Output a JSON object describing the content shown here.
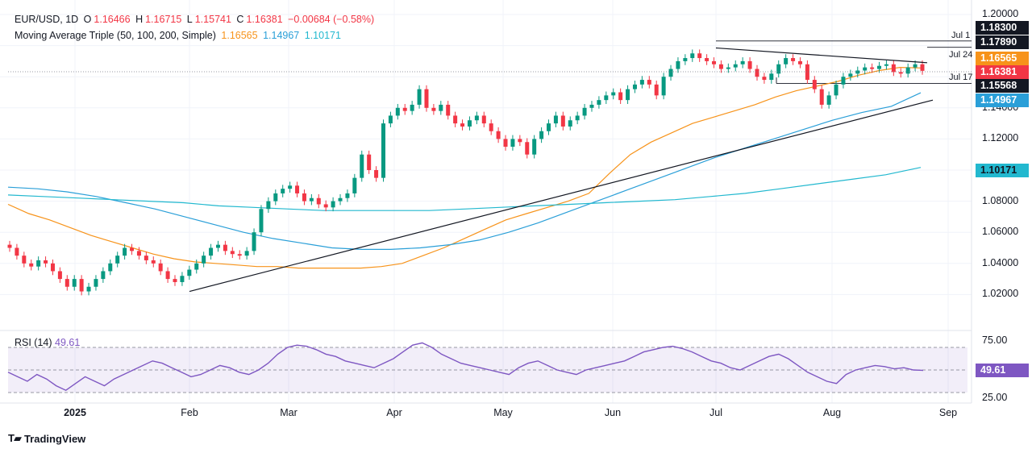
{
  "header": {
    "symbol": "EUR/USD, 1D",
    "o_label": "O",
    "o_value": "1.16466",
    "h_label": "H",
    "h_value": "1.16715",
    "l_label": "L",
    "l_value": "1.15741",
    "c_label": "C",
    "c_value": "1.16381",
    "change": "−0.00684 (−0.58%)"
  },
  "ma_legend": {
    "name": "Moving Average Triple (50, 100, 200, Simple)",
    "v50": "1.16565",
    "v100": "1.14967",
    "v200": "1.10171"
  },
  "rsi_legend": {
    "name": "RSI (14)",
    "value": "49.61"
  },
  "price_tags": [
    {
      "text": "1.18300",
      "bg": "#131722",
      "fg": "#ffffff"
    },
    {
      "text": "1.17890",
      "bg": "#131722",
      "fg": "#ffffff"
    },
    {
      "text": "1.16565",
      "bg": "#f7931a",
      "fg": "#ffffff"
    },
    {
      "text": "1.16381",
      "bg": "#f23645",
      "fg": "#ffffff"
    },
    {
      "text": "1.15568",
      "bg": "#131722",
      "fg": "#ffffff"
    },
    {
      "text": "1.14967",
      "bg": "#2a9fd8",
      "fg": "#ffffff"
    },
    {
      "text": "1.10171",
      "bg": "#22b8cf",
      "fg": "#131722"
    },
    {
      "text": "49.61",
      "bg": "#7e57c2",
      "fg": "#ffffff"
    }
  ],
  "hline_labels": [
    "Jul 1",
    "Jul 24",
    "Jul 17"
  ],
  "brand": "TradingView",
  "colors": {
    "up": "#089981",
    "down": "#f23645",
    "ma50": "#f7931a",
    "ma100": "#2a9fd8",
    "ma200": "#22b8cf",
    "rsi": "#7e57c2"
  },
  "chart_data": {
    "type": "candlestick",
    "title": "EUR/USD, 1D",
    "price_axis": {
      "ticks": [
        "1.20000",
        "1.18000",
        "1.16000",
        "1.14000",
        "1.12000",
        "1.10000",
        "1.08000",
        "1.06000",
        "1.04000",
        "1.02000"
      ],
      "ylim": [
        1.005,
        1.2
      ]
    },
    "x_axis": {
      "ticks": [
        "2025",
        "Feb",
        "Mar",
        "Apr",
        "May",
        "Jun",
        "Jul",
        "Aug",
        "Sep"
      ]
    },
    "rsi_axis": {
      "ticks": [
        "75.00",
        "50.00",
        "25.00"
      ],
      "levels": [
        70,
        50,
        30
      ]
    },
    "price_path": [
      1.05,
      1.045,
      1.04,
      1.038,
      1.042,
      1.04,
      1.035,
      1.03,
      1.025,
      1.03,
      1.022,
      1.025,
      1.03,
      1.035,
      1.04,
      1.045,
      1.05,
      1.048,
      1.045,
      1.042,
      1.04,
      1.035,
      1.03,
      1.028,
      1.032,
      1.036,
      1.04,
      1.045,
      1.05,
      1.052,
      1.048,
      1.046,
      1.045,
      1.048,
      1.06,
      1.075,
      1.08,
      1.085,
      1.088,
      1.09,
      1.085,
      1.08,
      1.082,
      1.078,
      1.076,
      1.08,
      1.082,
      1.085,
      1.095,
      1.11,
      1.1,
      1.095,
      1.13,
      1.135,
      1.14,
      1.138,
      1.142,
      1.152,
      1.14,
      1.138,
      1.142,
      1.135,
      1.13,
      1.128,
      1.132,
      1.135,
      1.13,
      1.125,
      1.12,
      1.115,
      1.12,
      1.118,
      1.11,
      1.12,
      1.125,
      1.13,
      1.135,
      1.128,
      1.132,
      1.135,
      1.14,
      1.142,
      1.145,
      1.148,
      1.15,
      1.145,
      1.152,
      1.155,
      1.158,
      1.155,
      1.148,
      1.16,
      1.165,
      1.17,
      1.172,
      1.175,
      1.172,
      1.17,
      1.168,
      1.165,
      1.166,
      1.168,
      1.17,
      1.165,
      1.16,
      1.158,
      1.162,
      1.168,
      1.172,
      1.17,
      1.168,
      1.158,
      1.152,
      1.142,
      1.148,
      1.155,
      1.16,
      1.162,
      1.164,
      1.166,
      1.165,
      1.167,
      1.168,
      1.163,
      1.162,
      1.166,
      1.168,
      1.1638
    ],
    "series": [
      {
        "name": "50",
        "values": [
          1.078,
          1.072,
          1.068,
          1.063,
          1.058,
          1.054,
          1.05,
          1.046,
          1.043,
          1.041,
          1.04,
          1.039,
          1.038,
          1.038,
          1.037,
          1.037,
          1.037,
          1.037,
          1.038,
          1.04,
          1.045,
          1.05,
          1.056,
          1.062,
          1.068,
          1.072,
          1.076,
          1.08,
          1.085,
          1.098,
          1.11,
          1.118,
          1.124,
          1.13,
          1.134,
          1.138,
          1.142,
          1.147,
          1.151,
          1.154,
          1.157,
          1.161,
          1.164,
          1.166,
          1.16565
        ]
      },
      {
        "name": "100",
        "values": [
          1.089,
          1.088,
          1.086,
          1.083,
          1.079,
          1.075,
          1.07,
          1.065,
          1.06,
          1.056,
          1.053,
          1.05,
          1.049,
          1.049,
          1.05,
          1.052,
          1.055,
          1.06,
          1.066,
          1.073,
          1.08,
          1.087,
          1.094,
          1.101,
          1.108,
          1.114,
          1.12,
          1.126,
          1.132,
          1.137,
          1.141,
          1.14967
        ]
      },
      {
        "name": "200",
        "values": [
          1.084,
          1.083,
          1.082,
          1.081,
          1.08,
          1.079,
          1.077,
          1.076,
          1.075,
          1.074,
          1.074,
          1.074,
          1.074,
          1.075,
          1.076,
          1.077,
          1.078,
          1.079,
          1.08,
          1.081,
          1.083,
          1.085,
          1.088,
          1.091,
          1.094,
          1.097,
          1.10171
        ]
      }
    ],
    "trendlines": [
      {
        "from": [
          "Feb",
          1.022
        ],
        "to": [
          "Aug end",
          1.145
        ]
      },
      {
        "from": [
          "Jul 1",
          1.1785
        ],
        "to": [
          "Aug end",
          1.169
        ]
      }
    ],
    "hlines": [
      {
        "label": "Jul 1",
        "value": 1.183
      },
      {
        "label": "Jul 24",
        "value": 1.1789
      },
      {
        "label": "Jul 17",
        "value": 1.15568
      }
    ],
    "rsi": {
      "name": "RSI (14)",
      "last": 49.61,
      "values": [
        48,
        44,
        40,
        46,
        42,
        36,
        32,
        38,
        44,
        40,
        36,
        42,
        46,
        50,
        54,
        58,
        56,
        52,
        48,
        44,
        46,
        50,
        54,
        52,
        48,
        46,
        50,
        56,
        64,
        70,
        72,
        71,
        68,
        64,
        62,
        58,
        56,
        54,
        52,
        56,
        60,
        66,
        72,
        74,
        70,
        64,
        60,
        56,
        54,
        52,
        50,
        48,
        46,
        52,
        56,
        58,
        54,
        50,
        48,
        46,
        50,
        52,
        54,
        56,
        58,
        62,
        66,
        68,
        70,
        71,
        69,
        66,
        62,
        58,
        56,
        52,
        50,
        54,
        58,
        62,
        64,
        60,
        54,
        48,
        44,
        40,
        38,
        46,
        50,
        52,
        54,
        53,
        51,
        52,
        50,
        49.61
      ]
    }
  }
}
